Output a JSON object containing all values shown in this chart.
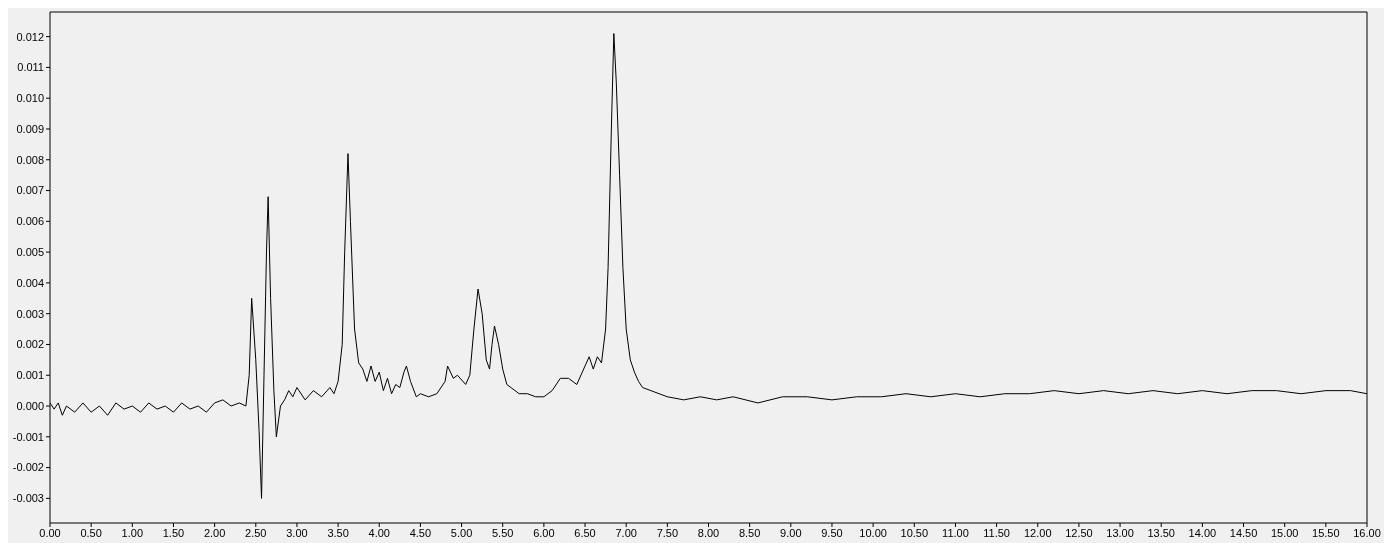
{
  "chart_data": {
    "type": "line",
    "color": "#000000",
    "marker": "none",
    "line_style": "solid",
    "grid": false,
    "legend": false,
    "x": [
      0,
      0.05,
      0.1,
      0.15,
      0.2,
      0.3,
      0.4,
      0.5,
      0.6,
      0.7,
      0.8,
      0.9,
      1.0,
      1.1,
      1.2,
      1.3,
      1.4,
      1.5,
      1.6,
      1.7,
      1.8,
      1.9,
      2.0,
      2.1,
      2.2,
      2.3,
      2.38,
      2.42,
      2.45,
      2.5,
      2.54,
      2.57,
      2.6,
      2.63,
      2.65,
      2.68,
      2.72,
      2.75,
      2.8,
      2.85,
      2.9,
      2.95,
      3.0,
      3.1,
      3.2,
      3.3,
      3.4,
      3.45,
      3.5,
      3.55,
      3.58,
      3.62,
      3.65,
      3.7,
      3.75,
      3.8,
      3.85,
      3.9,
      3.95,
      4.0,
      4.05,
      4.1,
      4.15,
      4.2,
      4.25,
      4.3,
      4.33,
      4.38,
      4.45,
      4.5,
      4.6,
      4.7,
      4.8,
      4.83,
      4.9,
      4.95,
      5.05,
      5.1,
      5.15,
      5.2,
      5.25,
      5.3,
      5.34,
      5.37,
      5.4,
      5.45,
      5.5,
      5.55,
      5.6,
      5.7,
      5.8,
      5.9,
      6.0,
      6.1,
      6.2,
      6.3,
      6.4,
      6.5,
      6.55,
      6.6,
      6.65,
      6.7,
      6.75,
      6.78,
      6.82,
      6.85,
      6.88,
      6.92,
      6.96,
      7.0,
      7.05,
      7.1,
      7.15,
      7.2,
      7.3,
      7.4,
      7.5,
      7.7,
      7.9,
      8.1,
      8.3,
      8.6,
      8.9,
      9.2,
      9.5,
      9.8,
      10.1,
      10.4,
      10.7,
      11.0,
      11.3,
      11.6,
      11.9,
      12.2,
      12.5,
      12.8,
      13.1,
      13.4,
      13.7,
      14.0,
      14.3,
      14.6,
      14.9,
      15.2,
      15.5,
      15.8,
      16.0
    ],
    "values": [
      0.0001,
      -0.0001,
      0.0001,
      -0.0003,
      0.0,
      -0.0002,
      0.0001,
      -0.0002,
      0.0,
      -0.0003,
      0.0001,
      -0.0001,
      0.0,
      -0.0002,
      0.0001,
      -0.0001,
      0.0,
      -0.0002,
      0.0001,
      -0.0001,
      0.0,
      -0.0002,
      0.0001,
      0.0002,
      0.0,
      0.0001,
      0.0,
      0.001,
      0.0035,
      0.0015,
      -0.0008,
      -0.003,
      0.001,
      0.005,
      0.0068,
      0.0035,
      0.0005,
      -0.001,
      0.0,
      0.0002,
      0.0005,
      0.0003,
      0.0006,
      0.0002,
      0.0005,
      0.0003,
      0.0006,
      0.0004,
      0.0008,
      0.002,
      0.005,
      0.0082,
      0.006,
      0.0025,
      0.0014,
      0.0012,
      0.0008,
      0.0013,
      0.0008,
      0.0011,
      0.0005,
      0.0009,
      0.0004,
      0.0007,
      0.0006,
      0.0011,
      0.0013,
      0.0008,
      0.0003,
      0.0004,
      0.0003,
      0.0004,
      0.0008,
      0.0013,
      0.0009,
      0.001,
      0.0007,
      0.001,
      0.0025,
      0.0038,
      0.003,
      0.0015,
      0.0012,
      0.002,
      0.0026,
      0.002,
      0.0012,
      0.0007,
      0.0006,
      0.0004,
      0.0004,
      0.0003,
      0.0003,
      0.0005,
      0.0009,
      0.0009,
      0.0007,
      0.0013,
      0.0016,
      0.0012,
      0.0016,
      0.0014,
      0.0025,
      0.0045,
      0.009,
      0.0121,
      0.0105,
      0.0075,
      0.0045,
      0.0025,
      0.0015,
      0.0011,
      0.0008,
      0.0006,
      0.0005,
      0.0004,
      0.0003,
      0.0002,
      0.0003,
      0.0002,
      0.0003,
      0.0001,
      0.0003,
      0.0003,
      0.0002,
      0.0003,
      0.0003,
      0.0004,
      0.0003,
      0.0004,
      0.0003,
      0.0004,
      0.0004,
      0.0005,
      0.0004,
      0.0005,
      0.0004,
      0.0005,
      0.0004,
      0.0005,
      0.0004,
      0.0005,
      0.0005,
      0.0004,
      0.0005,
      0.0005,
      0.0004
    ],
    "xlim": [
      0,
      16
    ],
    "ylim": [
      -0.0038,
      0.0128
    ],
    "xticks": [
      {
        "value": 0,
        "label": "0.00"
      },
      {
        "value": 0.5,
        "label": "0.50"
      },
      {
        "value": 1,
        "label": "1.00"
      },
      {
        "value": 1.5,
        "label": "1.50"
      },
      {
        "value": 2,
        "label": "2.00"
      },
      {
        "value": 2.5,
        "label": "2.50"
      },
      {
        "value": 3,
        "label": "3.00"
      },
      {
        "value": 3.5,
        "label": "3.50"
      },
      {
        "value": 4,
        "label": "4.00"
      },
      {
        "value": 4.5,
        "label": "4.50"
      },
      {
        "value": 5,
        "label": "5.00"
      },
      {
        "value": 5.5,
        "label": "5.50"
      },
      {
        "value": 6,
        "label": "6.00"
      },
      {
        "value": 6.5,
        "label": "6.50"
      },
      {
        "value": 7,
        "label": "7.00"
      },
      {
        "value": 7.5,
        "label": "7.50"
      },
      {
        "value": 8,
        "label": "8.00"
      },
      {
        "value": 8.5,
        "label": "8.50"
      },
      {
        "value": 9,
        "label": "9.00"
      },
      {
        "value": 9.5,
        "label": "9.50"
      },
      {
        "value": 10,
        "label": "10.00"
      },
      {
        "value": 10.5,
        "label": "10.50"
      },
      {
        "value": 11,
        "label": "11.00"
      },
      {
        "value": 11.5,
        "label": "11.50"
      },
      {
        "value": 12,
        "label": "12.00"
      },
      {
        "value": 12.5,
        "label": "12.50"
      },
      {
        "value": 13,
        "label": "13.00"
      },
      {
        "value": 13.5,
        "label": "13.50"
      },
      {
        "value": 14,
        "label": "14.00"
      },
      {
        "value": 14.5,
        "label": "14.50"
      },
      {
        "value": 15,
        "label": "15.00"
      },
      {
        "value": 15.5,
        "label": "15.50"
      },
      {
        "value": 16,
        "label": "16.00"
      }
    ],
    "yticks": [
      {
        "value": -0.003,
        "label": "-0.003"
      },
      {
        "value": -0.002,
        "label": "-0.002"
      },
      {
        "value": -0.001,
        "label": "-0.001"
      },
      {
        "value": 0,
        "label": "0.000"
      },
      {
        "value": 0.001,
        "label": "0.001"
      },
      {
        "value": 0.002,
        "label": "0.002"
      },
      {
        "value": 0.003,
        "label": "0.003"
      },
      {
        "value": 0.004,
        "label": "0.004"
      },
      {
        "value": 0.005,
        "label": "0.005"
      },
      {
        "value": 0.006,
        "label": "0.006"
      },
      {
        "value": 0.007,
        "label": "0.007"
      },
      {
        "value": 0.008,
        "label": "0.008"
      },
      {
        "value": 0.009,
        "label": "0.009"
      },
      {
        "value": 0.01,
        "label": "0.010"
      },
      {
        "value": 0.011,
        "label": "0.011"
      },
      {
        "value": 0.012,
        "label": "0.012"
      }
    ]
  }
}
